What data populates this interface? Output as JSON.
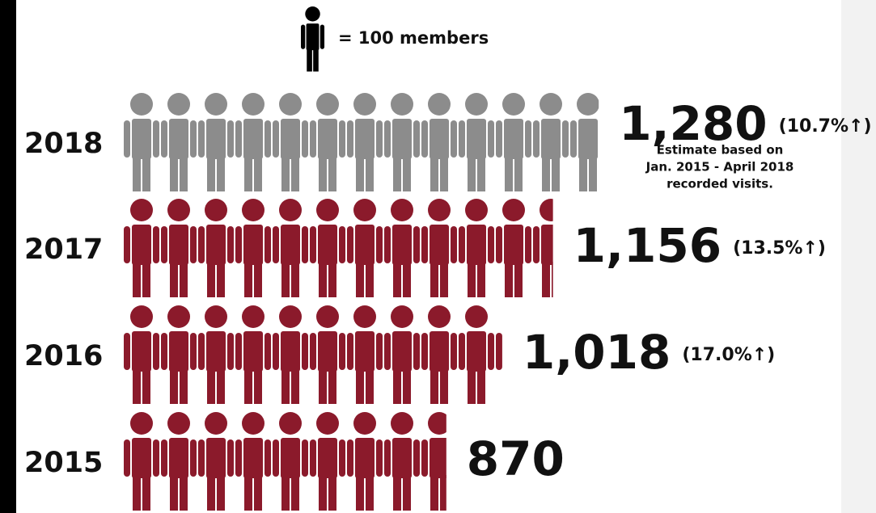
{
  "chart_data": {
    "type": "pictograph",
    "legend": "= 100 members",
    "unit": 100,
    "categories": [
      "2018",
      "2017",
      "2016",
      "2015"
    ],
    "values": [
      1280,
      1156,
      1018,
      870
    ],
    "value_labels": [
      "1,280",
      "1,156",
      "1,018",
      "870"
    ],
    "colors": [
      "#8c8c8c",
      "#8b1a2b",
      "#8b1a2b",
      "#8b1a2b"
    ],
    "legend_color": "#000000",
    "changes": [
      "(10.7%↑)",
      "(13.5%↑)",
      "(17.0%↑)",
      null
    ],
    "annotation": [
      "Estimate based on",
      "Jan. 2015 - April 2018",
      "recorded visits."
    ]
  }
}
